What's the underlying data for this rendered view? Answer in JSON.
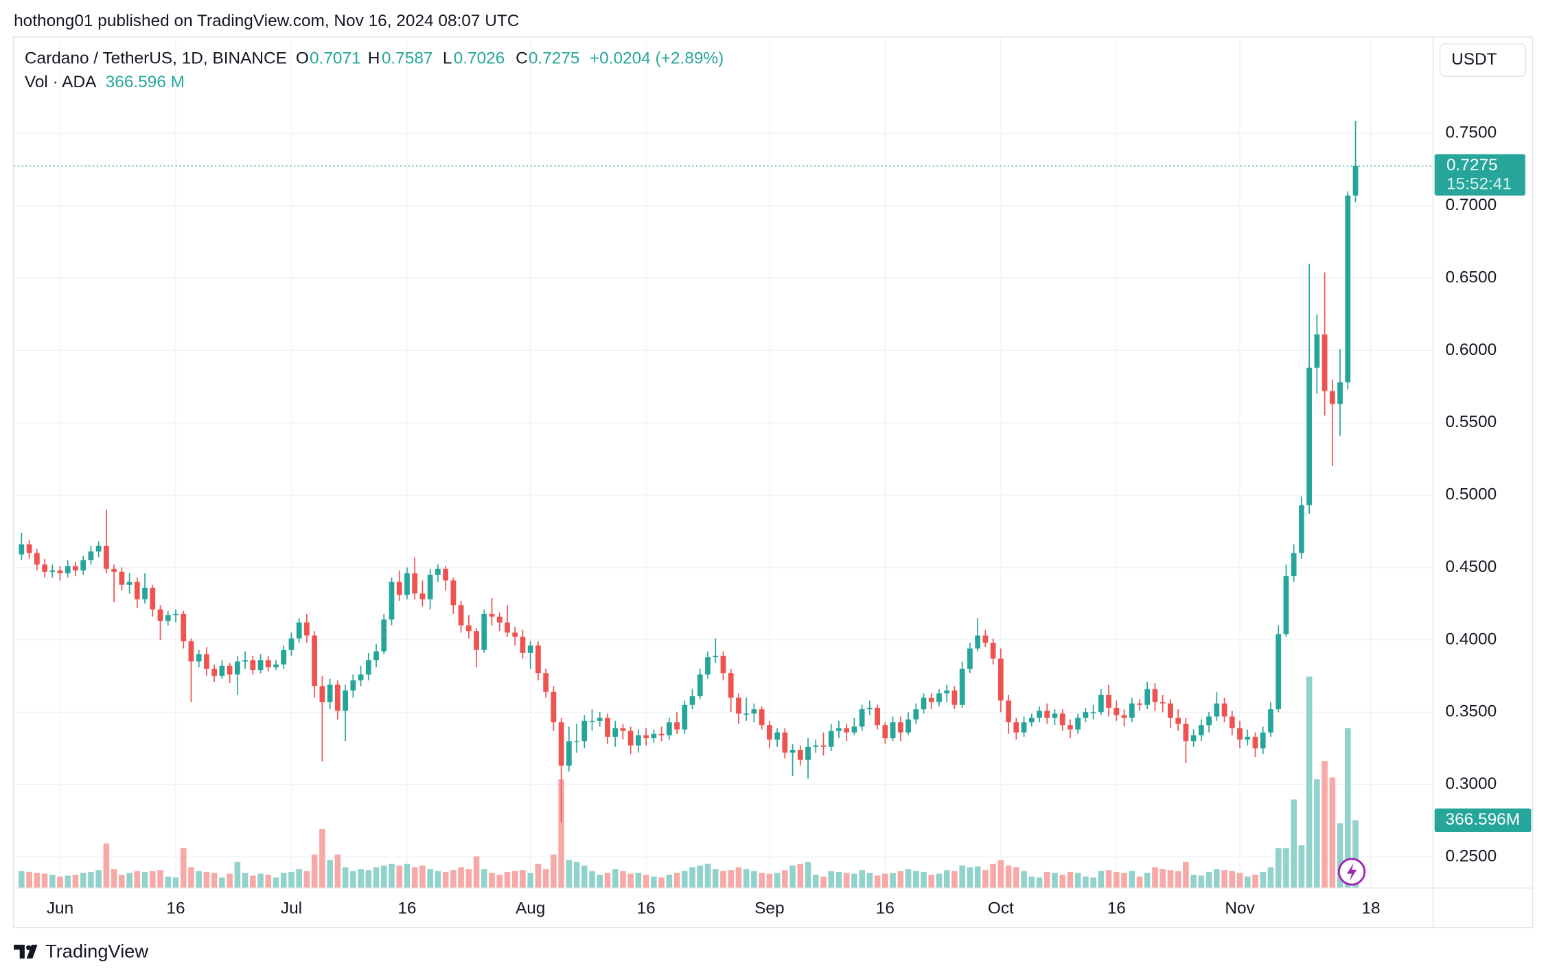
{
  "header": {
    "published": "hothong01 published on TradingView.com, Nov 16, 2024 08:07 UTC"
  },
  "footer": {
    "brand": "TradingView"
  },
  "chart_data": {
    "type": "candlestick",
    "title": "Cardano / TetherUS, 1D, BINANCE",
    "ohlc_letters": [
      "O",
      "H",
      "L",
      "C"
    ],
    "change_label": "+0.0204 (+2.89%)",
    "volume_title": "Vol · ADA",
    "volume_legend_label": "366.596 M",
    "volume_badge_label": "366.596M",
    "currency": "USDT",
    "countdown": "15:52:41",
    "x": [
      "2024-05-27",
      "2024-05-28",
      "2024-05-29",
      "2024-05-30",
      "2024-05-31",
      "2024-06-01",
      "2024-06-02",
      "2024-06-03",
      "2024-06-04",
      "2024-06-05",
      "2024-06-06",
      "2024-06-07",
      "2024-06-08",
      "2024-06-09",
      "2024-06-10",
      "2024-06-11",
      "2024-06-12",
      "2024-06-13",
      "2024-06-14",
      "2024-06-15",
      "2024-06-16",
      "2024-06-17",
      "2024-06-18",
      "2024-06-19",
      "2024-06-20",
      "2024-06-21",
      "2024-06-22",
      "2024-06-23",
      "2024-06-24",
      "2024-06-25",
      "2024-06-26",
      "2024-06-27",
      "2024-06-28",
      "2024-06-29",
      "2024-06-30",
      "2024-07-01",
      "2024-07-02",
      "2024-07-03",
      "2024-07-04",
      "2024-07-05",
      "2024-07-06",
      "2024-07-07",
      "2024-07-08",
      "2024-07-09",
      "2024-07-10",
      "2024-07-11",
      "2024-07-12",
      "2024-07-13",
      "2024-07-14",
      "2024-07-15",
      "2024-07-16",
      "2024-07-17",
      "2024-07-18",
      "2024-07-19",
      "2024-07-20",
      "2024-07-21",
      "2024-07-22",
      "2024-07-23",
      "2024-07-24",
      "2024-07-25",
      "2024-07-26",
      "2024-07-27",
      "2024-07-28",
      "2024-07-29",
      "2024-07-30",
      "2024-07-31",
      "2024-08-01",
      "2024-08-02",
      "2024-08-03",
      "2024-08-04",
      "2024-08-05",
      "2024-08-06",
      "2024-08-07",
      "2024-08-08",
      "2024-08-09",
      "2024-08-10",
      "2024-08-11",
      "2024-08-12",
      "2024-08-13",
      "2024-08-14",
      "2024-08-15",
      "2024-08-16",
      "2024-08-17",
      "2024-08-18",
      "2024-08-19",
      "2024-08-20",
      "2024-08-21",
      "2024-08-22",
      "2024-08-23",
      "2024-08-24",
      "2024-08-25",
      "2024-08-26",
      "2024-08-27",
      "2024-08-28",
      "2024-08-29",
      "2024-08-30",
      "2024-08-31",
      "2024-09-01",
      "2024-09-02",
      "2024-09-03",
      "2024-09-04",
      "2024-09-05",
      "2024-09-06",
      "2024-09-07",
      "2024-09-08",
      "2024-09-09",
      "2024-09-10",
      "2024-09-11",
      "2024-09-12",
      "2024-09-13",
      "2024-09-14",
      "2024-09-15",
      "2024-09-16",
      "2024-09-17",
      "2024-09-18",
      "2024-09-19",
      "2024-09-20",
      "2024-09-21",
      "2024-09-22",
      "2024-09-23",
      "2024-09-24",
      "2024-09-25",
      "2024-09-26",
      "2024-09-27",
      "2024-09-28",
      "2024-09-29",
      "2024-09-30",
      "2024-10-01",
      "2024-10-02",
      "2024-10-03",
      "2024-10-04",
      "2024-10-05",
      "2024-10-06",
      "2024-10-07",
      "2024-10-08",
      "2024-10-09",
      "2024-10-10",
      "2024-10-11",
      "2024-10-12",
      "2024-10-13",
      "2024-10-14",
      "2024-10-15",
      "2024-10-16",
      "2024-10-17",
      "2024-10-18",
      "2024-10-19",
      "2024-10-20",
      "2024-10-21",
      "2024-10-22",
      "2024-10-23",
      "2024-10-24",
      "2024-10-25",
      "2024-10-26",
      "2024-10-27",
      "2024-10-28",
      "2024-10-29",
      "2024-10-30",
      "2024-10-31",
      "2024-11-01",
      "2024-11-02",
      "2024-11-03",
      "2024-11-04",
      "2024-11-05",
      "2024-11-06",
      "2024-11-07",
      "2024-11-08",
      "2024-11-09",
      "2024-11-10",
      "2024-11-11",
      "2024-11-12",
      "2024-11-13",
      "2024-11-14",
      "2024-11-15",
      "2024-11-16"
    ],
    "open": [
      0.459,
      0.466,
      0.46,
      0.452,
      0.447,
      0.448,
      0.446,
      0.451,
      0.448,
      0.455,
      0.461,
      0.465,
      0.449,
      0.447,
      0.438,
      0.44,
      0.428,
      0.436,
      0.421,
      0.413,
      0.417,
      0.418,
      0.399,
      0.385,
      0.39,
      0.38,
      0.375,
      0.382,
      0.376,
      0.385,
      0.386,
      0.379,
      0.386,
      0.381,
      0.383,
      0.393,
      0.401,
      0.412,
      0.403,
      0.368,
      0.357,
      0.369,
      0.351,
      0.365,
      0.372,
      0.376,
      0.386,
      0.392,
      0.414,
      0.44,
      0.431,
      0.446,
      0.432,
      0.428,
      0.445,
      0.449,
      0.441,
      0.424,
      0.41,
      0.406,
      0.393,
      0.418,
      0.416,
      0.412,
      0.405,
      0.402,
      0.391,
      0.396,
      0.377,
      0.364,
      0.343,
      0.313,
      0.33,
      0.33,
      0.344,
      0.344,
      0.346,
      0.333,
      0.339,
      0.337,
      0.327,
      0.334,
      0.332,
      0.335,
      0.334,
      0.343,
      0.338,
      0.355,
      0.361,
      0.376,
      0.388,
      0.389,
      0.377,
      0.36,
      0.349,
      0.349,
      0.352,
      0.341,
      0.331,
      0.336,
      0.322,
      0.324,
      0.317,
      0.326,
      0.327,
      0.326,
      0.337,
      0.339,
      0.336,
      0.34,
      0.352,
      0.353,
      0.341,
      0.332,
      0.343,
      0.336,
      0.345,
      0.352,
      0.36,
      0.357,
      0.363,
      0.365,
      0.355,
      0.38,
      0.394,
      0.403,
      0.398,
      0.387,
      0.358,
      0.343,
      0.336,
      0.343,
      0.346,
      0.351,
      0.346,
      0.349,
      0.341,
      0.338,
      0.346,
      0.35,
      0.35,
      0.362,
      0.353,
      0.348,
      0.346,
      0.356,
      0.355,
      0.366,
      0.357,
      0.356,
      0.346,
      0.342,
      0.33,
      0.334,
      0.341,
      0.347,
      0.356,
      0.347,
      0.339,
      0.331,
      0.333,
      0.325,
      0.336,
      0.352,
      0.404,
      0.444,
      0.46,
      0.493,
      0.588,
      0.611,
      0.572,
      0.563,
      0.578,
      0.7071
    ],
    "high": [
      0.474,
      0.469,
      0.463,
      0.456,
      0.452,
      0.451,
      0.455,
      0.454,
      0.458,
      0.465,
      0.468,
      0.49,
      0.452,
      0.45,
      0.446,
      0.443,
      0.446,
      0.438,
      0.424,
      0.42,
      0.421,
      0.42,
      0.401,
      0.393,
      0.395,
      0.383,
      0.386,
      0.384,
      0.389,
      0.392,
      0.389,
      0.39,
      0.389,
      0.386,
      0.396,
      0.405,
      0.415,
      0.418,
      0.406,
      0.375,
      0.373,
      0.372,
      0.369,
      0.376,
      0.382,
      0.391,
      0.397,
      0.418,
      0.443,
      0.448,
      0.45,
      0.457,
      0.441,
      0.449,
      0.452,
      0.451,
      0.443,
      0.427,
      0.417,
      0.408,
      0.421,
      0.429,
      0.419,
      0.424,
      0.409,
      0.407,
      0.399,
      0.399,
      0.38,
      0.368,
      0.346,
      0.34,
      0.342,
      0.348,
      0.352,
      0.35,
      0.349,
      0.344,
      0.342,
      0.34,
      0.338,
      0.339,
      0.338,
      0.34,
      0.346,
      0.35,
      0.358,
      0.366,
      0.38,
      0.392,
      0.401,
      0.392,
      0.38,
      0.363,
      0.36,
      0.356,
      0.354,
      0.344,
      0.339,
      0.339,
      0.328,
      0.327,
      0.332,
      0.331,
      0.336,
      0.342,
      0.344,
      0.342,
      0.346,
      0.355,
      0.358,
      0.355,
      0.343,
      0.347,
      0.347,
      0.35,
      0.356,
      0.363,
      0.363,
      0.366,
      0.369,
      0.368,
      0.385,
      0.398,
      0.415,
      0.407,
      0.401,
      0.394,
      0.362,
      0.346,
      0.347,
      0.349,
      0.354,
      0.356,
      0.352,
      0.352,
      0.345,
      0.349,
      0.353,
      0.355,
      0.366,
      0.369,
      0.358,
      0.352,
      0.36,
      0.359,
      0.371,
      0.37,
      0.362,
      0.359,
      0.352,
      0.346,
      0.338,
      0.345,
      0.35,
      0.364,
      0.36,
      0.351,
      0.344,
      0.338,
      0.336,
      0.34,
      0.357,
      0.41,
      0.452,
      0.466,
      0.499,
      0.66,
      0.625,
      0.654,
      0.58,
      0.601,
      0.71,
      0.7587
    ],
    "low": [
      0.455,
      0.456,
      0.448,
      0.443,
      0.443,
      0.441,
      0.443,
      0.444,
      0.445,
      0.452,
      0.457,
      0.446,
      0.426,
      0.434,
      0.432,
      0.422,
      0.425,
      0.416,
      0.4,
      0.41,
      0.412,
      0.394,
      0.357,
      0.381,
      0.375,
      0.371,
      0.373,
      0.37,
      0.362,
      0.38,
      0.376,
      0.377,
      0.378,
      0.379,
      0.38,
      0.389,
      0.398,
      0.398,
      0.36,
      0.316,
      0.352,
      0.345,
      0.33,
      0.36,
      0.368,
      0.372,
      0.381,
      0.39,
      0.41,
      0.427,
      0.428,
      0.428,
      0.423,
      0.421,
      0.44,
      0.434,
      0.418,
      0.405,
      0.401,
      0.381,
      0.391,
      0.41,
      0.406,
      0.402,
      0.396,
      0.387,
      0.38,
      0.372,
      0.36,
      0.337,
      0.274,
      0.309,
      0.322,
      0.325,
      0.337,
      0.34,
      0.328,
      0.326,
      0.331,
      0.321,
      0.322,
      0.327,
      0.329,
      0.33,
      0.331,
      0.335,
      0.335,
      0.352,
      0.359,
      0.373,
      0.384,
      0.372,
      0.35,
      0.342,
      0.344,
      0.343,
      0.338,
      0.325,
      0.326,
      0.318,
      0.306,
      0.313,
      0.304,
      0.322,
      0.32,
      0.323,
      0.332,
      0.33,
      0.334,
      0.337,
      0.348,
      0.338,
      0.328,
      0.33,
      0.33,
      0.334,
      0.342,
      0.349,
      0.352,
      0.354,
      0.357,
      0.352,
      0.353,
      0.377,
      0.392,
      0.395,
      0.383,
      0.35,
      0.335,
      0.331,
      0.333,
      0.34,
      0.343,
      0.342,
      0.341,
      0.337,
      0.332,
      0.335,
      0.343,
      0.345,
      0.348,
      0.347,
      0.344,
      0.34,
      0.343,
      0.351,
      0.352,
      0.351,
      0.35,
      0.339,
      0.337,
      0.315,
      0.326,
      0.33,
      0.336,
      0.344,
      0.343,
      0.334,
      0.325,
      0.327,
      0.319,
      0.321,
      0.333,
      0.35,
      0.402,
      0.44,
      0.456,
      0.487,
      0.57,
      0.555,
      0.52,
      0.541,
      0.573,
      0.7026
    ],
    "close": [
      0.466,
      0.46,
      0.452,
      0.447,
      0.448,
      0.446,
      0.451,
      0.448,
      0.455,
      0.461,
      0.465,
      0.449,
      0.447,
      0.438,
      0.44,
      0.428,
      0.436,
      0.421,
      0.413,
      0.417,
      0.418,
      0.399,
      0.385,
      0.39,
      0.38,
      0.375,
      0.382,
      0.376,
      0.385,
      0.386,
      0.379,
      0.386,
      0.381,
      0.383,
      0.393,
      0.401,
      0.412,
      0.403,
      0.368,
      0.357,
      0.369,
      0.351,
      0.365,
      0.372,
      0.376,
      0.386,
      0.392,
      0.414,
      0.44,
      0.431,
      0.446,
      0.432,
      0.428,
      0.445,
      0.449,
      0.441,
      0.424,
      0.41,
      0.406,
      0.393,
      0.418,
      0.416,
      0.412,
      0.405,
      0.402,
      0.391,
      0.396,
      0.377,
      0.364,
      0.343,
      0.313,
      0.33,
      0.33,
      0.344,
      0.344,
      0.346,
      0.333,
      0.339,
      0.337,
      0.327,
      0.334,
      0.332,
      0.335,
      0.334,
      0.343,
      0.338,
      0.355,
      0.361,
      0.376,
      0.388,
      0.389,
      0.377,
      0.36,
      0.349,
      0.349,
      0.352,
      0.341,
      0.331,
      0.336,
      0.322,
      0.324,
      0.317,
      0.326,
      0.327,
      0.326,
      0.337,
      0.339,
      0.336,
      0.34,
      0.352,
      0.353,
      0.341,
      0.332,
      0.343,
      0.336,
      0.345,
      0.352,
      0.36,
      0.357,
      0.363,
      0.365,
      0.355,
      0.38,
      0.394,
      0.403,
      0.398,
      0.387,
      0.358,
      0.343,
      0.336,
      0.343,
      0.346,
      0.351,
      0.346,
      0.349,
      0.341,
      0.338,
      0.346,
      0.35,
      0.35,
      0.362,
      0.353,
      0.348,
      0.346,
      0.356,
      0.355,
      0.366,
      0.357,
      0.356,
      0.346,
      0.342,
      0.33,
      0.334,
      0.341,
      0.347,
      0.356,
      0.347,
      0.339,
      0.331,
      0.333,
      0.325,
      0.336,
      0.352,
      0.404,
      0.444,
      0.46,
      0.493,
      0.588,
      0.611,
      0.572,
      0.563,
      0.578,
      0.7071,
      0.7275
    ],
    "volume": [
      90,
      85,
      80,
      75,
      70,
      60,
      65,
      70,
      80,
      85,
      95,
      240,
      100,
      70,
      80,
      90,
      85,
      90,
      95,
      60,
      55,
      215,
      110,
      90,
      85,
      80,
      55,
      75,
      140,
      80,
      65,
      75,
      70,
      55,
      80,
      85,
      100,
      90,
      180,
      320,
      150,
      180,
      110,
      90,
      100,
      95,
      110,
      120,
      130,
      120,
      130,
      110,
      120,
      100,
      90,
      85,
      95,
      110,
      100,
      170,
      100,
      80,
      70,
      85,
      90,
      95,
      80,
      130,
      100,
      180,
      590,
      150,
      140,
      120,
      90,
      70,
      80,
      100,
      90,
      75,
      80,
      70,
      60,
      55,
      70,
      80,
      90,
      110,
      120,
      130,
      100,
      90,
      95,
      110,
      100,
      90,
      80,
      75,
      80,
      95,
      120,
      130,
      140,
      70,
      60,
      90,
      85,
      80,
      75,
      95,
      80,
      65,
      75,
      80,
      90,
      100,
      90,
      85,
      70,
      75,
      95,
      90,
      120,
      110,
      115,
      95,
      130,
      150,
      120,
      110,
      90,
      60,
      55,
      85,
      80,
      70,
      85,
      80,
      60,
      55,
      90,
      95,
      85,
      80,
      90,
      60,
      80,
      110,
      100,
      95,
      90,
      140,
      70,
      65,
      85,
      100,
      95,
      90,
      80,
      60,
      70,
      85,
      110,
      215,
      215,
      480,
      230,
      1150,
      590,
      690,
      600,
      350,
      870,
      366.596
    ],
    "up_color": "#26a69a",
    "down_color": "#ef5350",
    "volume_up_color": "#92d2cc",
    "volume_down_color": "#f7a9a7",
    "xlim": [
      "2024-05-26",
      "2024-11-26"
    ],
    "xticks": [
      {
        "value": "2024-06-01",
        "label": "Jun"
      },
      {
        "value": "2024-06-16",
        "label": "16"
      },
      {
        "value": "2024-07-01",
        "label": "Jul"
      },
      {
        "value": "2024-07-16",
        "label": "16"
      },
      {
        "value": "2024-08-01",
        "label": "Aug"
      },
      {
        "value": "2024-08-16",
        "label": "16"
      },
      {
        "value": "2024-09-01",
        "label": "Sep"
      },
      {
        "value": "2024-09-16",
        "label": "16"
      },
      {
        "value": "2024-10-01",
        "label": "Oct"
      },
      {
        "value": "2024-10-16",
        "label": "16"
      },
      {
        "value": "2024-11-01",
        "label": "Nov"
      },
      {
        "value": "2024-11-18",
        "label": "18"
      }
    ],
    "ylim": [
      0.2288,
      0.8163
    ],
    "yticks": [
      {
        "value": 0.25,
        "label": "0.2500"
      },
      {
        "value": 0.3,
        "label": "0.3000"
      },
      {
        "value": 0.35,
        "label": "0.3500"
      },
      {
        "value": 0.4,
        "label": "0.4000"
      },
      {
        "value": 0.45,
        "label": "0.4500"
      },
      {
        "value": 0.5,
        "label": "0.5000"
      },
      {
        "value": 0.55,
        "label": "0.5500"
      },
      {
        "value": 0.6,
        "label": "0.6000"
      },
      {
        "value": 0.65,
        "label": "0.6500"
      },
      {
        "value": 0.7,
        "label": "0.7000"
      },
      {
        "value": 0.75,
        "label": "0.7500"
      }
    ],
    "y2lim": [
      0,
      4636
    ],
    "grid": true,
    "last_price_line": true
  }
}
